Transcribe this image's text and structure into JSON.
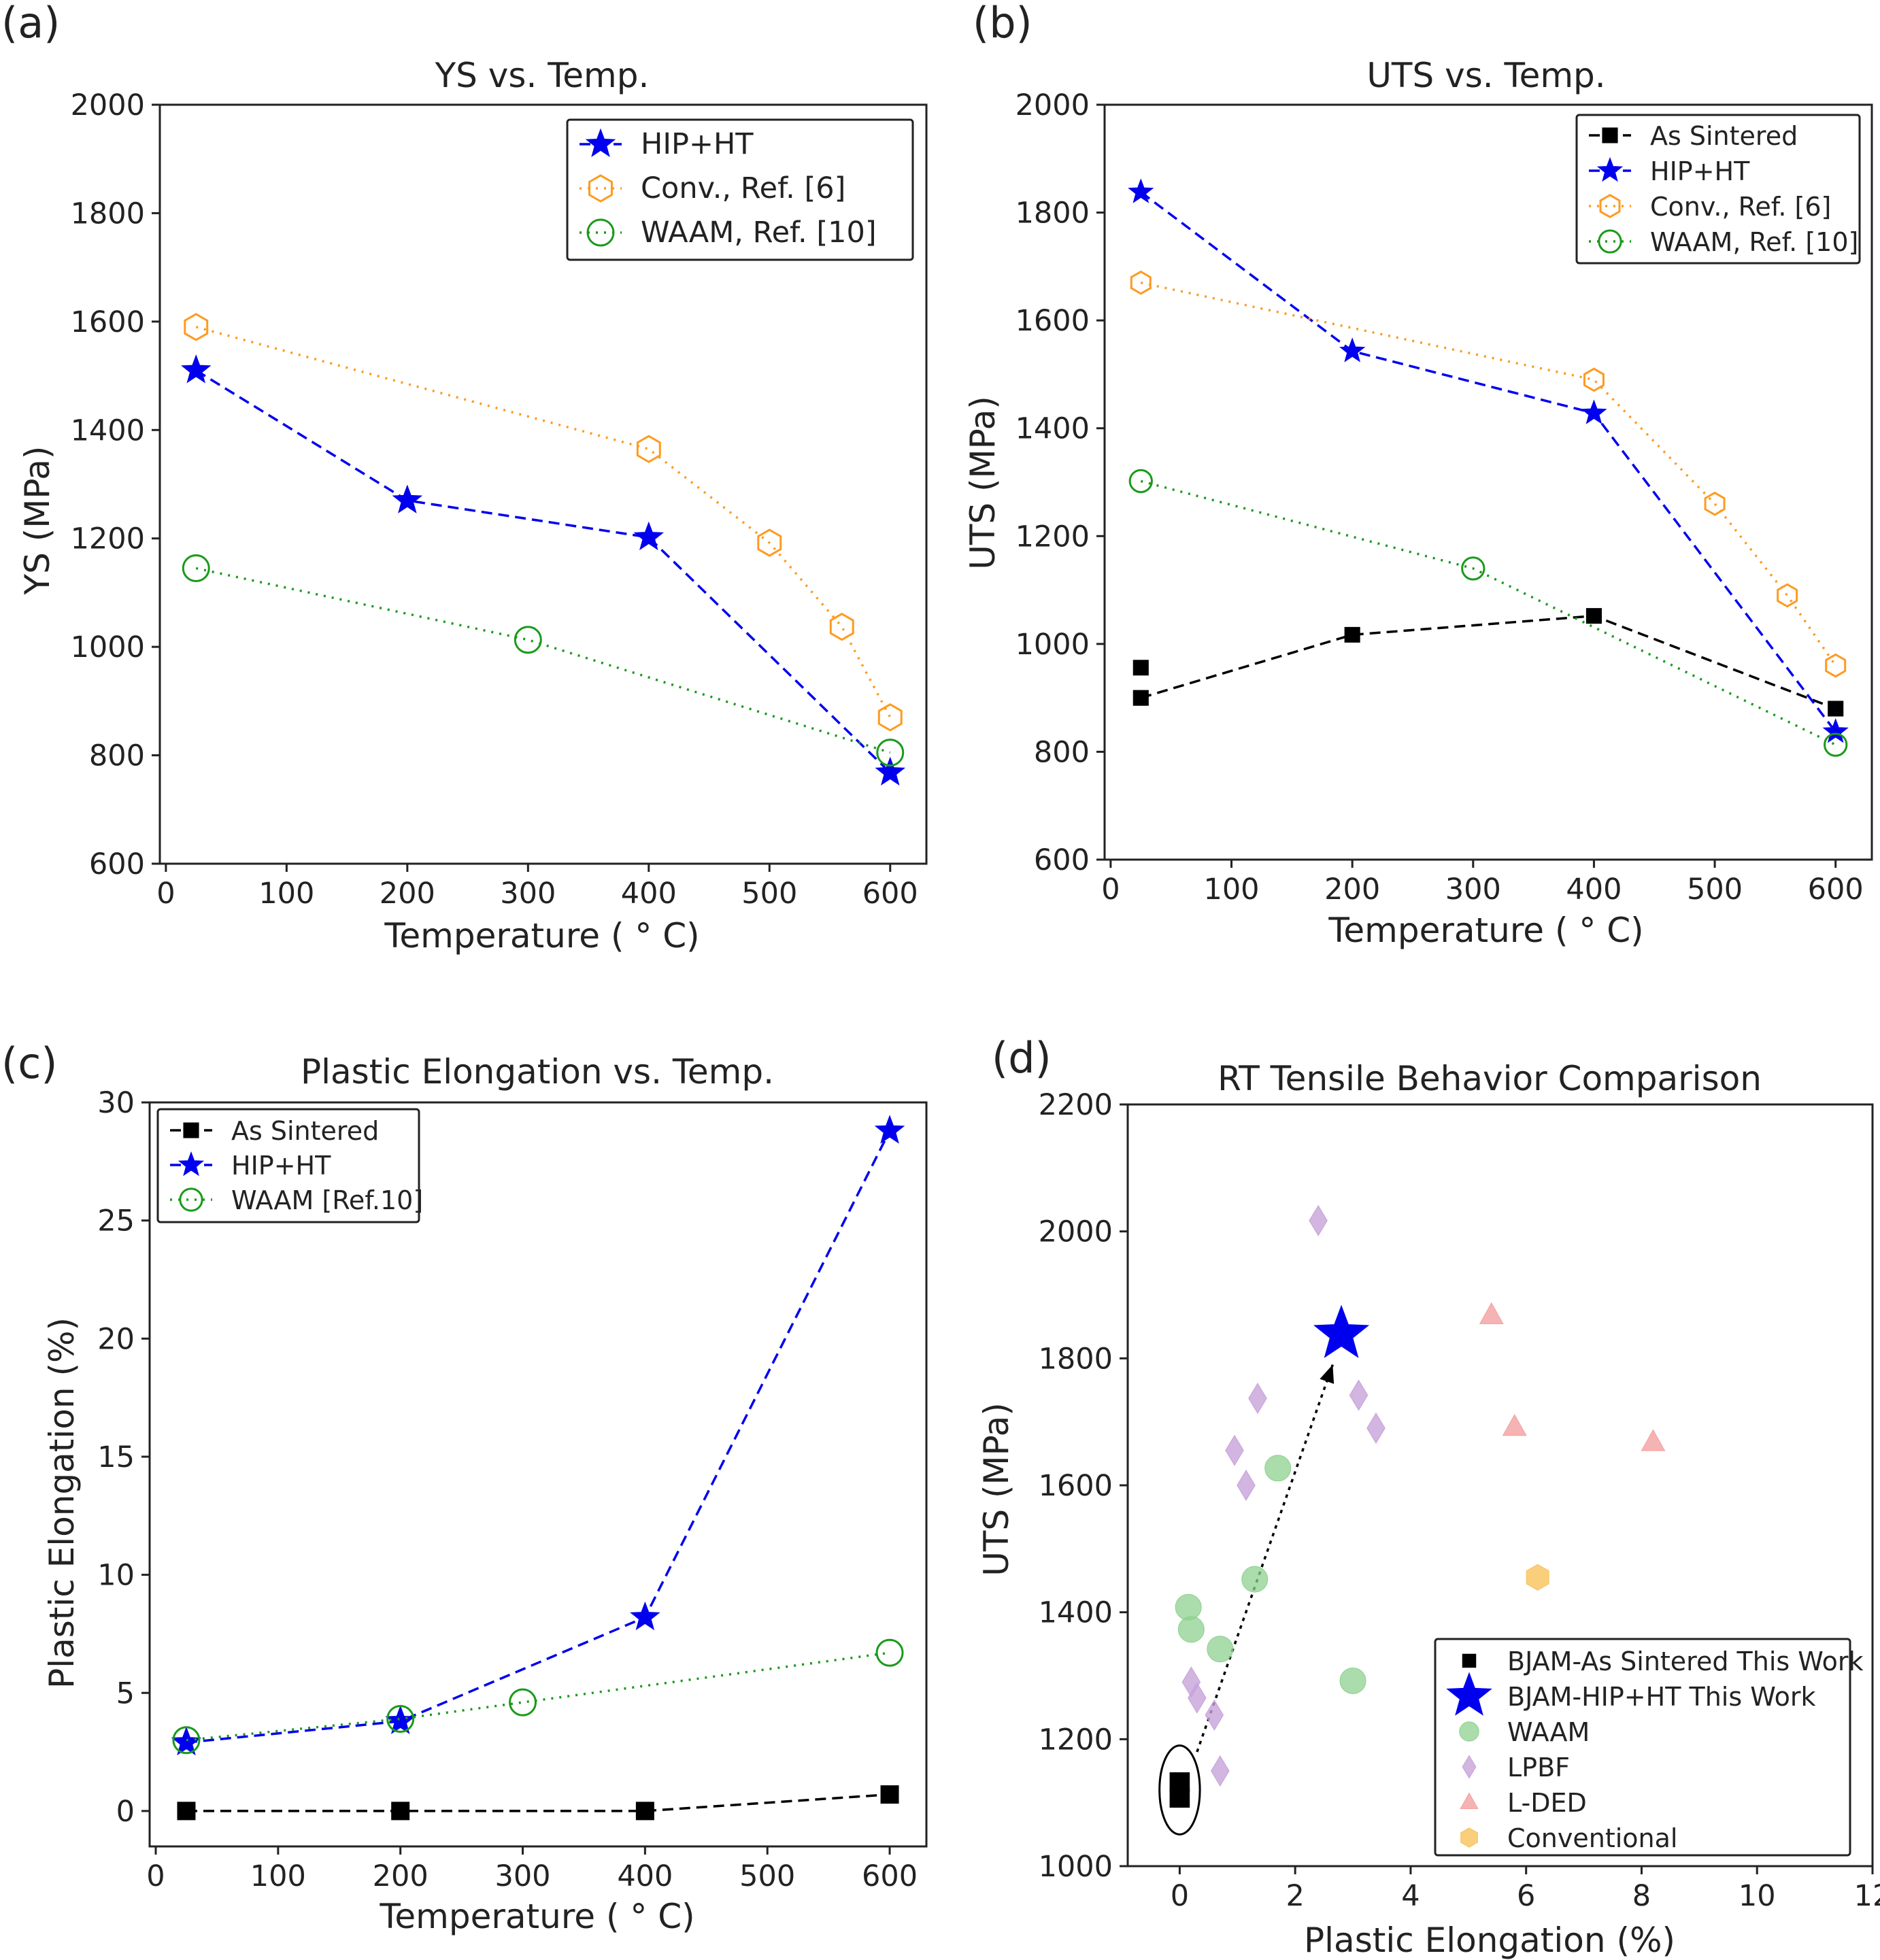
{
  "chart_data": [
    {
      "id": "a",
      "panel_label": "(a)",
      "type": "line",
      "title": "YS vs. Temp.",
      "xlabel": "Temperature ( ° C)",
      "ylabel": "YS (MPa)",
      "xlim": [
        -5,
        630
      ],
      "ylim": [
        600,
        2000
      ],
      "xticks": [
        0,
        100,
        200,
        300,
        400,
        500,
        600
      ],
      "yticks": [
        600,
        800,
        1000,
        1200,
        1400,
        1600,
        1800,
        2000
      ],
      "legend_position": "top-right",
      "grid": false,
      "series": [
        {
          "name": "HIP+HT",
          "color": "#0000ee",
          "marker": "star",
          "dash": "dashed",
          "x": [
            25,
            200,
            400,
            600
          ],
          "y": [
            1510,
            1270,
            1202,
            768
          ]
        },
        {
          "name": "Conv., Ref. [6]",
          "color": "#ff9a1f",
          "marker": "hexagon",
          "dash": "dotted",
          "x": [
            25,
            400,
            500,
            560,
            600
          ],
          "y": [
            1590,
            1365,
            1192,
            1037,
            870
          ]
        },
        {
          "name": "WAAM, Ref. [10]",
          "color": "#1a9a1a",
          "marker": "circle",
          "dash": "dotted",
          "x": [
            25,
            300,
            600
          ],
          "y": [
            1145,
            1013,
            805
          ]
        }
      ]
    },
    {
      "id": "b",
      "panel_label": "(b)",
      "type": "line",
      "title": "UTS vs. Temp.",
      "xlabel": "Temperature ( ° C)",
      "ylabel": "UTS (MPa)",
      "xlim": [
        -5,
        630
      ],
      "ylim": [
        600,
        2000
      ],
      "xticks": [
        0,
        100,
        200,
        300,
        400,
        500,
        600
      ],
      "yticks": [
        600,
        800,
        1000,
        1200,
        1400,
        1600,
        1800,
        2000
      ],
      "legend_position": "top-right",
      "grid": false,
      "series": [
        {
          "name": "As Sintered",
          "color": "#000000",
          "marker": "square",
          "dash": "dashed",
          "x": [
            25,
            200,
            400,
            600
          ],
          "y": [
            900,
            1017,
            1052,
            880
          ]
        },
        {
          "name": "HIP+HT",
          "color": "#0000ee",
          "marker": "star",
          "dash": "dashed",
          "x": [
            25,
            200,
            400,
            600
          ],
          "y": [
            1838,
            1543,
            1428,
            837
          ]
        },
        {
          "name": "Conv., Ref. [6]",
          "color": "#ff9a1f",
          "marker": "hexagon",
          "dash": "dotted",
          "x": [
            25,
            400,
            500,
            560,
            600
          ],
          "y": [
            1670,
            1490,
            1260,
            1090,
            960
          ]
        },
        {
          "name": "WAAM, Ref. [10]",
          "color": "#1a9a1a",
          "marker": "circle",
          "dash": "dotted",
          "x": [
            25,
            300,
            600
          ],
          "y": [
            1302,
            1140,
            813
          ]
        }
      ],
      "extra_points": [
        {
          "series": "As Sintered",
          "x": 25,
          "y": 956
        }
      ]
    },
    {
      "id": "c",
      "panel_label": "(c)",
      "type": "line",
      "title": "Plastic Elongation vs. Temp.",
      "xlabel": "Temperature ( ° C)",
      "ylabel": "Plastic Elongation (%)",
      "xlim": [
        -5,
        630
      ],
      "ylim": [
        -1.5,
        30
      ],
      "xticks": [
        0,
        100,
        200,
        300,
        400,
        500,
        600
      ],
      "yticks": [
        0,
        5,
        10,
        15,
        20,
        25,
        30
      ],
      "legend_position": "top-left",
      "grid": false,
      "series": [
        {
          "name": "As Sintered",
          "color": "#000000",
          "marker": "square",
          "dash": "dashed",
          "x": [
            25,
            200,
            400,
            600
          ],
          "y": [
            0,
            0,
            0,
            0.7
          ]
        },
        {
          "name": "HIP+HT",
          "color": "#0000ee",
          "marker": "star",
          "dash": "dashed",
          "x": [
            25,
            200,
            400,
            600
          ],
          "y": [
            2.9,
            3.8,
            8.2,
            28.8
          ]
        },
        {
          "name": "WAAM [Ref.10]",
          "color": "#1a9a1a",
          "marker": "circle",
          "dash": "dotted",
          "x": [
            25,
            200,
            300,
            600
          ],
          "y": [
            3.0,
            3.9,
            4.6,
            6.7
          ]
        }
      ]
    },
    {
      "id": "d",
      "panel_label": "(d)",
      "type": "scatter",
      "title": "RT Tensile Behavior Comparison",
      "xlabel": "Plastic Elongation (%)",
      "ylabel": "UTS (MPa)",
      "xlim": [
        -0.9,
        12
      ],
      "ylim": [
        1000,
        2200
      ],
      "xticks": [
        0,
        2,
        4,
        6,
        8,
        10,
        12
      ],
      "yticks": [
        1000,
        1200,
        1400,
        1600,
        1800,
        2000,
        2200
      ],
      "legend_position": "bottom-right",
      "grid": false,
      "series": [
        {
          "name": "BJAM-As Sintered This Work",
          "color": "#000000",
          "marker": "square",
          "x": [
            0,
            0
          ],
          "y": [
            1108,
            1132
          ]
        },
        {
          "name": "BJAM-HIP+HT This Work",
          "color": "#0000ee",
          "marker": "star",
          "x": [
            2.8
          ],
          "y": [
            1838
          ]
        },
        {
          "name": "WAAM",
          "color": "#8fd08f",
          "marker": "circle",
          "x": [
            0.15,
            0.2,
            0.7,
            1.3,
            1.7,
            3.0
          ],
          "y": [
            1408,
            1373,
            1342,
            1452,
            1627,
            1292
          ]
        },
        {
          "name": "LPBF",
          "color": "#c7a2d8",
          "marker": "diamond",
          "x": [
            0.2,
            0.3,
            0.6,
            0.7,
            0.95,
            1.15,
            1.35,
            2.4,
            3.1,
            3.4
          ],
          "y": [
            1290,
            1265,
            1238,
            1150,
            1655,
            1600,
            1737,
            2017,
            1742,
            1690
          ]
        },
        {
          "name": "L-DED",
          "color": "#f4a0a0",
          "marker": "triangle",
          "x": [
            5.4,
            5.8,
            8.2
          ],
          "y": [
            1868,
            1692,
            1668
          ]
        },
        {
          "name": "Conventional",
          "color": "#f7c35a",
          "marker": "hexagon",
          "x": [
            6.2
          ],
          "y": [
            1455
          ]
        }
      ],
      "arrow": {
        "from": [
          0.3,
          1180
        ],
        "to": [
          2.65,
          1790
        ]
      },
      "ellipse": {
        "cx": 0,
        "cy": 1120,
        "rx": 0.35,
        "ry": 70
      }
    }
  ]
}
